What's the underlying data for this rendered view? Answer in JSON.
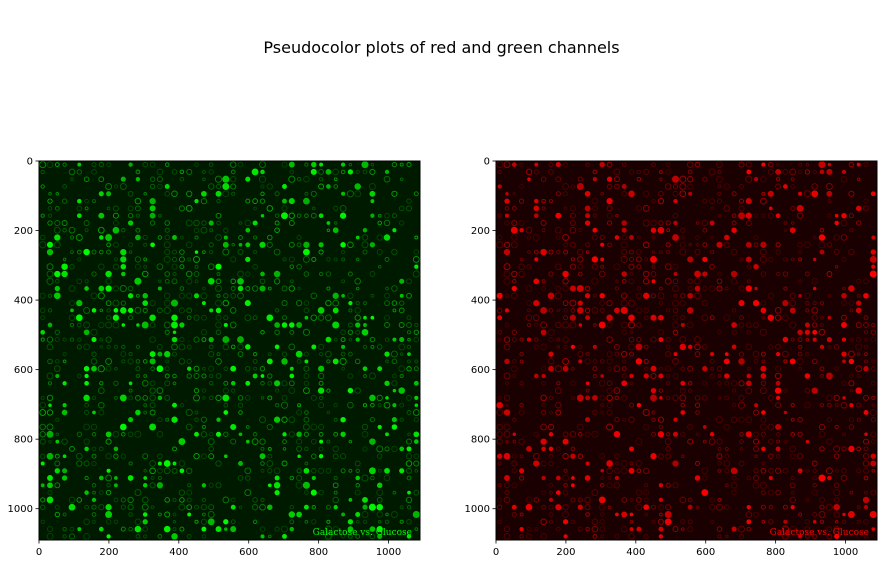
{
  "figure": {
    "title": "Pseudocolor plots of red and green channels"
  },
  "chart_data": [
    {
      "type": "heatmap",
      "channel": "green",
      "colormap_color": "#00ff00",
      "background_color": "#001a00",
      "xlim": [
        0,
        1090
      ],
      "ylim": [
        1090,
        0
      ],
      "xticks": [
        0,
        200,
        400,
        600,
        800,
        1000
      ],
      "yticks": [
        0,
        200,
        400,
        600,
        800,
        1000
      ],
      "watermark": "Galactose vs. Glucose",
      "grid": false
    },
    {
      "type": "heatmap",
      "channel": "red",
      "colormap_color": "#ff0000",
      "background_color": "#1a0000",
      "xlim": [
        0,
        1090
      ],
      "ylim": [
        1090,
        0
      ],
      "xticks": [
        0,
        200,
        400,
        600,
        800,
        1000
      ],
      "yticks": [
        0,
        200,
        400,
        600,
        800,
        1000
      ],
      "watermark": "Galactose vs. Glucose",
      "grid": false
    }
  ]
}
